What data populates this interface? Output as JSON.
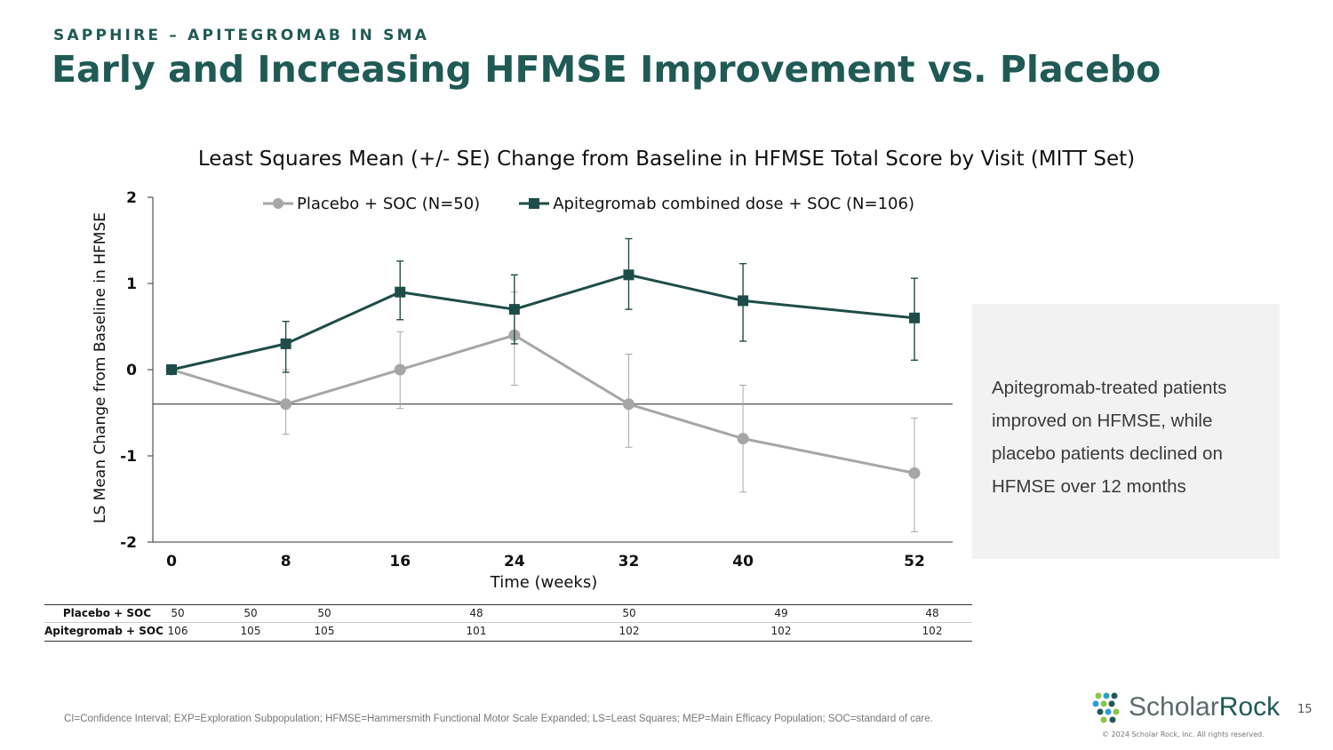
{
  "header": {
    "kicker": "SAPPHIRE – APITEGROMAB IN SMA",
    "title": "Early and Increasing HFMSE Improvement vs. Placebo"
  },
  "chart_data": {
    "type": "line",
    "title": "Least Squares Mean (+/- SE) Change from Baseline in HFMSE Total Score by Visit (MITT Set)",
    "xlabel": "Time (weeks)",
    "ylabel": "LS Mean Change from Baseline in HFMSE",
    "x": [
      0,
      8,
      16,
      24,
      32,
      40,
      52
    ],
    "xlim": [
      0,
      52
    ],
    "ylim": [
      -2,
      2
    ],
    "yticks": [
      2,
      1,
      0,
      -1,
      -2
    ],
    "reference_line_y": -0.4,
    "legend_position": "top",
    "series": [
      {
        "name": "Placebo + SOC (N=50)",
        "marker": "circle",
        "color": "#a6a6a6",
        "values": [
          0,
          -0.4,
          0.0,
          0.4,
          -0.4,
          -0.8,
          -1.2
        ],
        "err_low": [
          0,
          -0.75,
          -0.45,
          -0.18,
          -0.9,
          -1.42,
          -1.88
        ],
        "err_high": [
          0,
          0,
          0.44,
          0.9,
          0.18,
          -0.18,
          -0.56
        ]
      },
      {
        "name": "Apitegromab combined dose + SOC (N=106)",
        "marker": "square",
        "color": "#1e4d49",
        "values": [
          0,
          0.3,
          0.9,
          0.7,
          1.1,
          0.8,
          0.6
        ],
        "err_low": [
          0,
          -0.03,
          0.58,
          0.3,
          0.7,
          0.33,
          0.11
        ],
        "err_high": [
          0,
          0.56,
          1.26,
          1.1,
          1.52,
          1.23,
          1.06
        ]
      }
    ]
  },
  "at_risk": {
    "rows": [
      {
        "label": "Placebo + SOC",
        "values": [
          "50",
          "50",
          "50",
          "48",
          "50",
          "49",
          "48"
        ]
      },
      {
        "label": "Apitegromab + SOC",
        "values": [
          "106",
          "105",
          "105",
          "101",
          "102",
          "102",
          "102"
        ]
      }
    ]
  },
  "callout": {
    "lines": [
      "Apitegromab-treated patients",
      "improved on HFMSE, while",
      "placebo patients declined on",
      "HFMSE over 12 months"
    ]
  },
  "footnote": "CI=Confidence Interval; EXP=Exploration Subpopulation; HFMSE=Hammersmith Functional Motor Scale Expanded; LS=Least Squares; MEP=Main Efficacy Population; SOC=standard of care.",
  "branding": {
    "logo_part1": "Scholar",
    "logo_part2": "Rock",
    "copyright": "© 2024 Scholar Rock, Inc. All rights reserved.",
    "page_number": "15",
    "colors": {
      "teal": "#1f5a55",
      "green": "#8cc63f",
      "blue": "#2a9fd6",
      "dark": "#1e4d49"
    }
  }
}
